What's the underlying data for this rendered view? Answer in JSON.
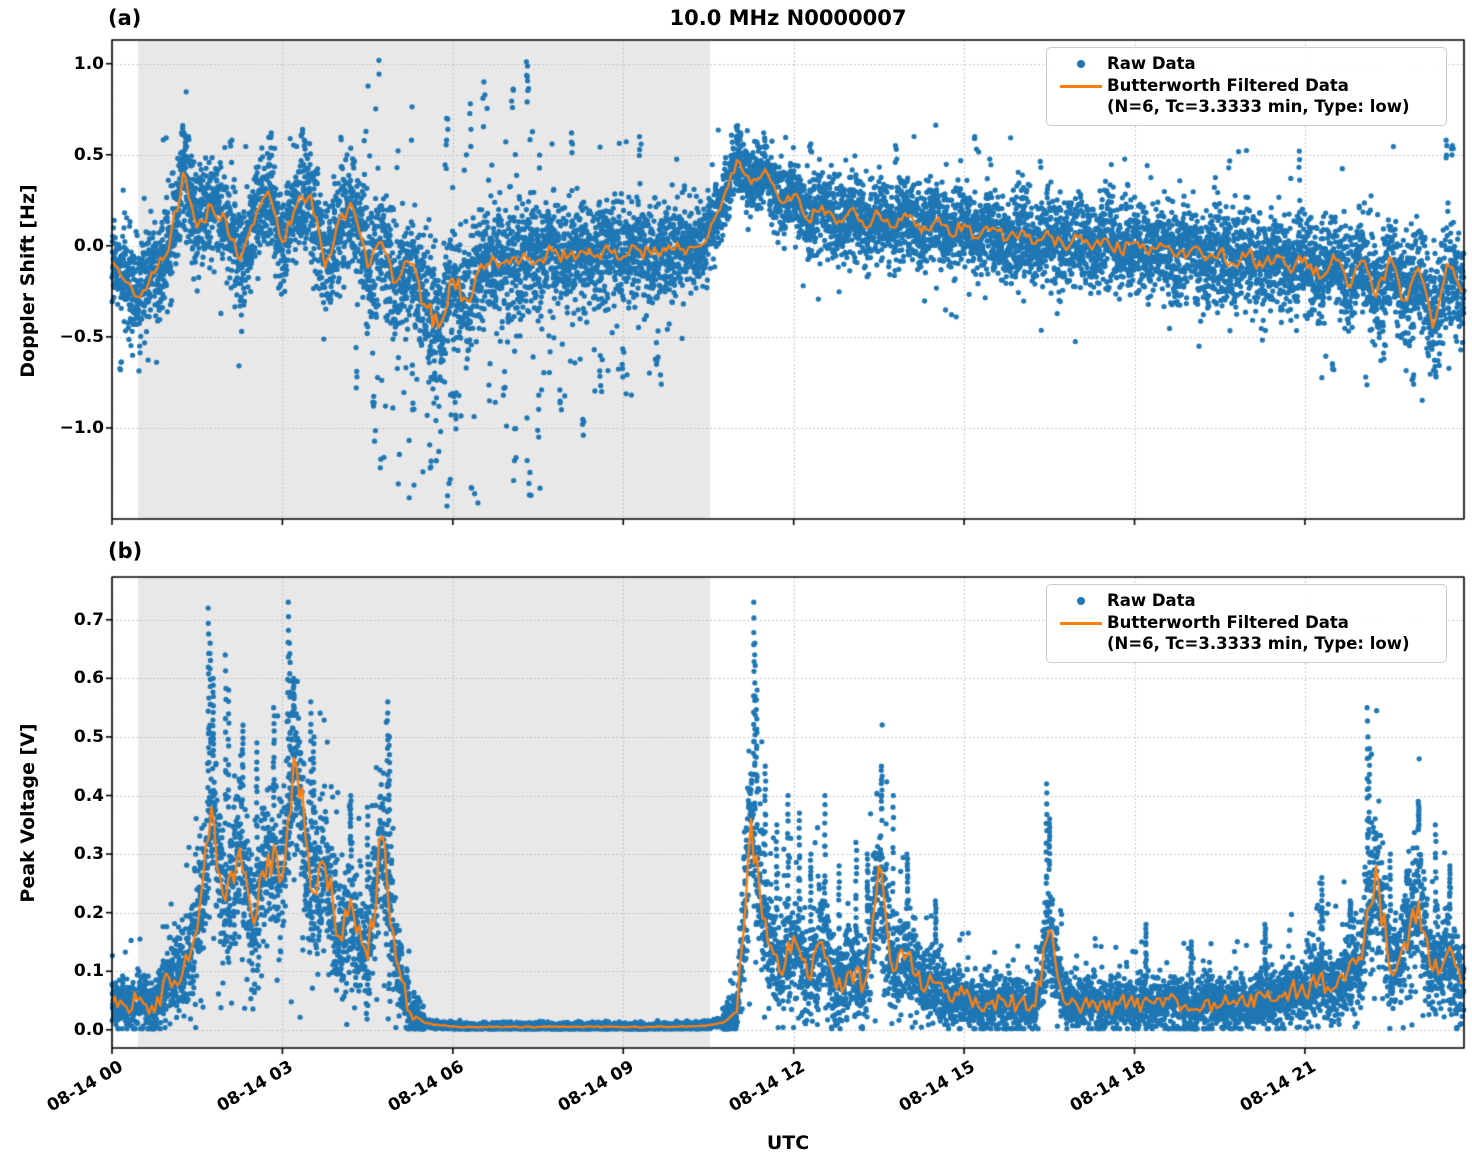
{
  "figure": {
    "panel_a_label": "(a)",
    "panel_b_label": "(b)",
    "title": "10.0 MHz N0000007",
    "xlabel": "UTC",
    "colors": {
      "raw": "#1f77b4",
      "filtered": "#ff7f0e",
      "shade": "#e8e8e8",
      "grid": "#bababa",
      "spine": "#000000"
    },
    "legend": {
      "raw_label": "Raw Data",
      "filtered_label": "Butterworth Filtered Data",
      "filtered_sublabel": "(N=6, Tc=3.3333 min, Type: low)"
    }
  },
  "chart_data": [
    {
      "panel": "a",
      "type": "scatter",
      "title": "10.0 MHz N0000007",
      "ylabel": "Doppler Shift [Hz]",
      "series": [
        {
          "name": "Raw Data",
          "kind": "scatter",
          "color": "#1f77b4"
        },
        {
          "name": "Butterworth Filtered Data (N=6, Tc=3.3333 min, Type: low)",
          "kind": "line",
          "color": "#ff7f0e"
        }
      ],
      "grid": true,
      "legend_position": "upper right",
      "xlim_hours": [
        0,
        23.8
      ],
      "x_tick_hours": [
        0,
        3,
        6,
        9,
        12,
        15,
        18,
        21
      ],
      "x_tick_labels": [
        "08-14 00",
        "08-14 03",
        "08-14 06",
        "08-14 09",
        "08-14 12",
        "08-14 15",
        "08-14 18",
        "08-14 21"
      ],
      "ylim": [
        -1.5,
        1.13
      ],
      "y_ticks": [
        1.0,
        0.5,
        0.0,
        -0.5,
        -1.0
      ],
      "y_tick_labels": [
        "1.0",
        "0.5",
        "0.0",
        "−0.5",
        "−1.0"
      ],
      "shaded_region_hours": [
        0.46,
        10.53
      ],
      "t_step_hours": 0.25,
      "filtered_hz": [
        -0.08,
        -0.2,
        -0.28,
        -0.15,
        -0.02,
        0.4,
        0.1,
        0.22,
        0.15,
        -0.08,
        0.12,
        0.3,
        0.02,
        0.22,
        0.28,
        -0.12,
        0.15,
        0.2,
        -0.12,
        0.02,
        -0.2,
        -0.1,
        -0.32,
        -0.45,
        -0.18,
        -0.3,
        -0.1,
        -0.08,
        -0.1,
        -0.04,
        -0.08,
        -0.03,
        -0.07,
        -0.03,
        -0.06,
        -0.02,
        -0.06,
        -0.02,
        -0.05,
        -0.03,
        -0.02,
        -0.01,
        0.06,
        0.25,
        0.47,
        0.34,
        0.42,
        0.25,
        0.28,
        0.14,
        0.22,
        0.12,
        0.2,
        0.1,
        0.18,
        0.1,
        0.16,
        0.07,
        0.14,
        0.06,
        0.12,
        0.04,
        0.1,
        0.03,
        0.08,
        0.01,
        0.06,
        0.0,
        0.05,
        -0.02,
        0.04,
        -0.03,
        0.02,
        -0.05,
        0.0,
        -0.06,
        -0.02,
        -0.08,
        -0.03,
        -0.1,
        -0.04,
        -0.12,
        -0.05,
        -0.15,
        -0.06,
        -0.18,
        -0.05,
        -0.22,
        -0.08,
        -0.28,
        -0.06,
        -0.3,
        -0.12,
        -0.45,
        -0.1,
        -0.25
      ],
      "scatter_band_halfwidth_hz": [
        0.25,
        0.25,
        0.27,
        0.27,
        0.28,
        0.28,
        0.28,
        0.28,
        0.28,
        0.28,
        0.28,
        0.28,
        0.28,
        0.28,
        0.28,
        0.28,
        0.3,
        0.3,
        0.33,
        0.35,
        0.35,
        0.35,
        0.35,
        0.35,
        0.35,
        0.33,
        0.3,
        0.3,
        0.3,
        0.3,
        0.28,
        0.26,
        0.26,
        0.26,
        0.26,
        0.26,
        0.26,
        0.26,
        0.26,
        0.26,
        0.26,
        0.25,
        0.22,
        0.18,
        0.16,
        0.16,
        0.17,
        0.2,
        0.22,
        0.22,
        0.22,
        0.22,
        0.22,
        0.22,
        0.22,
        0.22,
        0.22,
        0.22,
        0.22,
        0.22,
        0.22,
        0.22,
        0.23,
        0.23,
        0.23,
        0.23,
        0.24,
        0.24,
        0.24,
        0.24,
        0.24,
        0.24,
        0.24,
        0.24,
        0.25,
        0.25,
        0.25,
        0.25,
        0.25,
        0.25,
        0.26,
        0.26,
        0.26,
        0.26,
        0.27,
        0.27,
        0.27,
        0.27,
        0.28,
        0.28,
        0.28,
        0.28,
        0.28,
        0.28,
        0.28,
        0.28
      ],
      "scatter_outliers": [
        [
          0.15,
          -0.68
        ],
        [
          1.25,
          0.66
        ],
        [
          1.3,
          0.6
        ],
        [
          2.1,
          0.58
        ],
        [
          2.8,
          0.62
        ],
        [
          3.35,
          0.64
        ],
        [
          3.4,
          0.58
        ],
        [
          4.3,
          -0.78
        ],
        [
          4.6,
          -0.88
        ],
        [
          5.3,
          -0.9
        ],
        [
          5.6,
          -1.22
        ],
        [
          5.9,
          0.7
        ],
        [
          6.05,
          -0.95
        ],
        [
          6.3,
          0.78
        ],
        [
          6.55,
          0.9
        ],
        [
          6.9,
          -0.82
        ],
        [
          7.05,
          0.86
        ],
        [
          7.3,
          1.01
        ],
        [
          7.33,
          0.93
        ],
        [
          7.36,
          -1.37
        ],
        [
          7.1,
          -1.18
        ],
        [
          7.5,
          -1.05
        ],
        [
          7.9,
          -0.9
        ],
        [
          8.1,
          0.62
        ],
        [
          8.3,
          -1.04
        ],
        [
          8.6,
          -0.8
        ],
        [
          9.0,
          -0.72
        ],
        [
          9.3,
          0.6
        ],
        [
          9.6,
          -0.65
        ],
        [
          11.0,
          0.66
        ],
        [
          11.05,
          0.62
        ],
        [
          12.3,
          0.56
        ],
        [
          13.8,
          0.55
        ],
        [
          15.2,
          0.6
        ],
        [
          20.9,
          0.52
        ],
        [
          21.5,
          -0.68
        ],
        [
          22.4,
          -0.62
        ],
        [
          22.9,
          -0.76
        ],
        [
          23.3,
          -0.72
        ],
        [
          23.5,
          0.58
        ],
        [
          23.6,
          0.55
        ]
      ]
    },
    {
      "panel": "b",
      "type": "scatter",
      "ylabel": "Peak Voltage [V]",
      "xlabel": "UTC",
      "series": [
        {
          "name": "Raw Data",
          "kind": "scatter",
          "color": "#1f77b4"
        },
        {
          "name": "Butterworth Filtered Data (N=6, Tc=3.3333 min, Type: low)",
          "kind": "line",
          "color": "#ff7f0e"
        }
      ],
      "grid": true,
      "legend_position": "upper right",
      "xlim_hours": [
        0,
        23.8
      ],
      "x_tick_hours": [
        0,
        3,
        6,
        9,
        12,
        15,
        18,
        21
      ],
      "x_tick_labels": [
        "08-14 00",
        "08-14 03",
        "08-14 06",
        "08-14 09",
        "08-14 12",
        "08-14 15",
        "08-14 18",
        "08-14 21"
      ],
      "ylim": [
        -0.031,
        0.773
      ],
      "y_ticks": [
        0.0,
        0.1,
        0.2,
        0.3,
        0.4,
        0.5,
        0.6,
        0.7
      ],
      "y_tick_labels": [
        "0.0",
        "0.1",
        "0.2",
        "0.3",
        "0.4",
        "0.5",
        "0.6",
        "0.7"
      ],
      "shaded_region_hours": [
        0.46,
        10.53
      ],
      "t_step_hours": 0.25,
      "filtered_v": [
        0.045,
        0.04,
        0.055,
        0.03,
        0.09,
        0.1,
        0.17,
        0.38,
        0.22,
        0.31,
        0.18,
        0.3,
        0.26,
        0.45,
        0.24,
        0.28,
        0.16,
        0.2,
        0.12,
        0.33,
        0.12,
        0.03,
        0.012,
        0.008,
        0.006,
        0.005,
        0.005,
        0.005,
        0.005,
        0.005,
        0.005,
        0.005,
        0.005,
        0.005,
        0.005,
        0.005,
        0.005,
        0.005,
        0.005,
        0.005,
        0.006,
        0.006,
        0.008,
        0.012,
        0.03,
        0.36,
        0.19,
        0.1,
        0.16,
        0.09,
        0.15,
        0.07,
        0.1,
        0.08,
        0.28,
        0.1,
        0.13,
        0.07,
        0.08,
        0.05,
        0.06,
        0.04,
        0.05,
        0.04,
        0.05,
        0.04,
        0.17,
        0.05,
        0.04,
        0.05,
        0.035,
        0.05,
        0.04,
        0.05,
        0.04,
        0.05,
        0.035,
        0.05,
        0.04,
        0.05,
        0.04,
        0.06,
        0.05,
        0.07,
        0.06,
        0.09,
        0.07,
        0.1,
        0.12,
        0.28,
        0.1,
        0.15,
        0.22,
        0.1,
        0.13,
        0.08
      ],
      "scatter_outliers": [
        [
          1.7,
          0.72
        ],
        [
          1.73,
          0.66
        ],
        [
          1.78,
          0.6
        ],
        [
          2.0,
          0.64
        ],
        [
          2.05,
          0.58
        ],
        [
          2.3,
          0.52
        ],
        [
          2.55,
          0.49
        ],
        [
          2.85,
          0.55
        ],
        [
          3.1,
          0.73
        ],
        [
          3.13,
          0.66
        ],
        [
          3.2,
          0.6
        ],
        [
          3.5,
          0.56
        ],
        [
          3.55,
          0.5
        ],
        [
          4.2,
          0.4
        ],
        [
          4.5,
          0.38
        ],
        [
          4.85,
          0.56
        ],
        [
          4.88,
          0.5
        ],
        [
          11.3,
          0.73
        ],
        [
          11.32,
          0.66
        ],
        [
          11.35,
          0.58
        ],
        [
          11.5,
          0.45
        ],
        [
          11.7,
          0.35
        ],
        [
          11.9,
          0.4
        ],
        [
          12.1,
          0.37
        ],
        [
          12.3,
          0.3
        ],
        [
          12.55,
          0.4
        ],
        [
          12.8,
          0.28
        ],
        [
          13.1,
          0.32
        ],
        [
          13.3,
          0.3
        ],
        [
          13.55,
          0.45
        ],
        [
          13.75,
          0.4
        ],
        [
          14.0,
          0.3
        ],
        [
          14.5,
          0.22
        ],
        [
          16.45,
          0.42
        ],
        [
          16.5,
          0.36
        ],
        [
          18.2,
          0.18
        ],
        [
          19.0,
          0.15
        ],
        [
          20.3,
          0.18
        ],
        [
          21.3,
          0.26
        ],
        [
          21.8,
          0.22
        ],
        [
          22.1,
          0.55
        ],
        [
          22.13,
          0.48
        ],
        [
          22.5,
          0.3
        ],
        [
          22.8,
          0.25
        ],
        [
          23.0,
          0.39
        ],
        [
          23.3,
          0.35
        ],
        [
          23.55,
          0.28
        ]
      ]
    }
  ]
}
